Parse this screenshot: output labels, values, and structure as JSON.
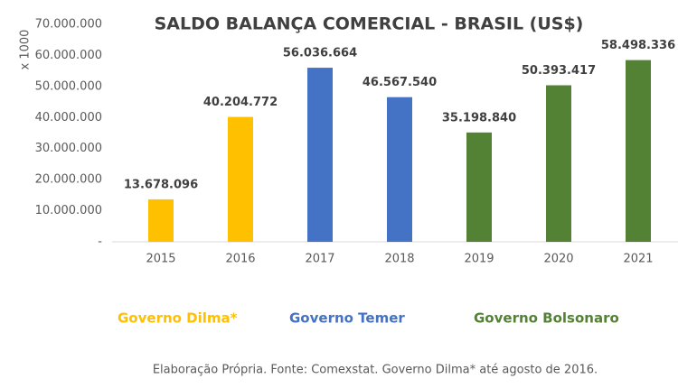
{
  "chart_data": {
    "type": "bar",
    "title": "SALDO BALANÇA COMERCIAL - BRASIL (US$)",
    "y_label": "x 1000",
    "categories": [
      "2015",
      "2016",
      "2017",
      "2018",
      "2019",
      "2020",
      "2021"
    ],
    "series": [
      {
        "name": "Governo Dilma*",
        "color": "#FFC000",
        "values": [
          13678096,
          40204772,
          null,
          null,
          null,
          null,
          null
        ],
        "value_labels": [
          "13.678.096",
          "40.204.772",
          null,
          null,
          null,
          null,
          null
        ]
      },
      {
        "name": "Governo Temer",
        "color": "#4472C4",
        "values": [
          null,
          null,
          56036664,
          46567540,
          null,
          null,
          null
        ],
        "value_labels": [
          null,
          null,
          "56.036.664",
          "46.567.540",
          null,
          null,
          null
        ]
      },
      {
        "name": "Governo Bolsonaro",
        "color": "#548235",
        "values": [
          null,
          null,
          null,
          null,
          35198840,
          50393417,
          58498336
        ],
        "value_labels": [
          null,
          null,
          null,
          null,
          "35.198.840",
          "50.393.417",
          "58.498.336"
        ]
      }
    ],
    "ylim": [
      0,
      70000000
    ],
    "yticks": [
      {
        "value": 0,
        "label": "-"
      },
      {
        "value": 10000000,
        "label": "10.000.000"
      },
      {
        "value": 20000000,
        "label": "20.000.000"
      },
      {
        "value": 30000000,
        "label": "30.000.000"
      },
      {
        "value": 40000000,
        "label": "40.000.000"
      },
      {
        "value": 50000000,
        "label": "50.000.000"
      },
      {
        "value": 60000000,
        "label": "60.000.000"
      },
      {
        "value": 70000000,
        "label": "70.000.000"
      }
    ],
    "grid": false,
    "note": "Elaboração Própria. Fonte: Comexstat. Governo Dilma* até agosto de 2016."
  }
}
